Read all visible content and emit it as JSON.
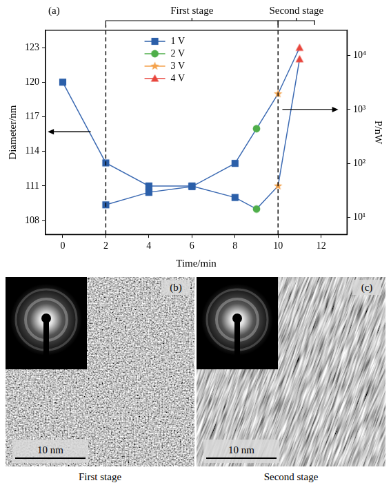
{
  "chart_data": {
    "type": "line",
    "panel_label": "(a)",
    "x_label": "Time/min",
    "y_label": "Diameter/nm",
    "y2_label": "P/nW",
    "xlim": [
      -0.8,
      13.2
    ],
    "xticks": [
      0,
      2,
      4,
      6,
      8,
      10,
      12
    ],
    "ylim": [
      106.8,
      124.5
    ],
    "yticks": [
      108,
      111,
      114,
      117,
      120,
      123
    ],
    "y2lim": [
      4.8,
      29500
    ],
    "y2ticks": [
      {
        "value": 10,
        "label": "10¹"
      },
      {
        "value": 100,
        "label": "10²"
      },
      {
        "value": 1000,
        "label": "10³"
      },
      {
        "value": 10000,
        "label": "10⁴"
      }
    ],
    "log": "y2",
    "grid": false,
    "legend": "upper center",
    "legend_entries": [
      {
        "name": "1 V",
        "color": "#2b5fa9",
        "marker": "square"
      },
      {
        "name": "2 V",
        "color": "#4fae4a",
        "marker": "circle"
      },
      {
        "name": "3 V",
        "color": "#f4a24c",
        "marker": "star"
      },
      {
        "name": "4 V",
        "color": "#e8453c",
        "marker": "triangle"
      }
    ],
    "series": [
      {
        "axis": "y",
        "color": "#3d6bb3",
        "x": [
          0,
          2,
          4,
          6,
          8,
          9,
          10,
          11
        ],
        "values": [
          120,
          113,
          111,
          111,
          110,
          109,
          111,
          122
        ],
        "voltages": [
          "1 V",
          "1 V",
          "1 V",
          "1 V",
          "1 V",
          "2 V",
          "3 V",
          "4 V"
        ]
      },
      {
        "axis": "y2",
        "color": "#3d6bb3",
        "x": [
          2,
          4,
          6,
          8,
          9,
          10,
          11
        ],
        "values": [
          17,
          29,
          37,
          100,
          440,
          1950,
          14000
        ],
        "voltages": [
          "1 V",
          "1 V",
          "1 V",
          "1 V",
          "2 V",
          "3 V",
          "4 V"
        ]
      }
    ],
    "stages": [
      {
        "label": "First stage",
        "start": 2,
        "end": 10
      },
      {
        "label": "Second stage",
        "start": 10,
        "end": 11.7
      }
    ],
    "arrows": [
      {
        "axis": "y",
        "from": 1.3,
        "to": -0.7,
        "at": 115.7
      },
      {
        "axis": "y2",
        "from": 10.2,
        "to": 12.8,
        "at": 1000
      }
    ]
  },
  "images": [
    {
      "label": "(b)",
      "scale_bar": "10 nm",
      "caption": "First stage"
    },
    {
      "label": "(c)",
      "scale_bar": "10 nm",
      "caption": "Second stage"
    }
  ]
}
